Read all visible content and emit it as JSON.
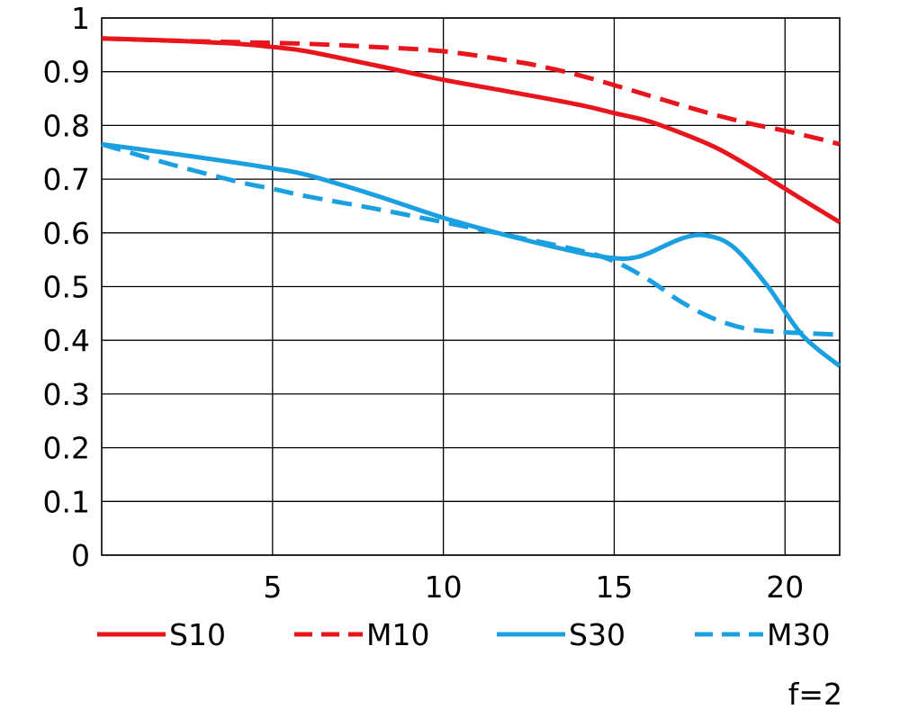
{
  "chart_data": {
    "type": "line",
    "title": "",
    "xlabel": "",
    "ylabel": "",
    "xlim": [
      0,
      21.6
    ],
    "ylim": [
      0,
      1
    ],
    "xticks": [
      5,
      10,
      15,
      20
    ],
    "yticks": [
      0,
      0.1,
      0.2,
      0.3,
      0.4,
      0.5,
      0.6,
      0.7,
      0.8,
      0.9,
      1
    ],
    "xtick_labels": [
      "5",
      "10",
      "15",
      "20"
    ],
    "ytick_labels": [
      "0",
      "0.1",
      "0.2",
      "0.3",
      "0.4",
      "0.5",
      "0.6",
      "0.7",
      "0.8",
      "0.9",
      "1"
    ],
    "grid": true,
    "legend_position": "bottom",
    "series": [
      {
        "name": "S10",
        "color": "#e8151c",
        "dash": false,
        "x": [
          0,
          2,
          4,
          5,
          6,
          8,
          10,
          12,
          14,
          15,
          16,
          17,
          18,
          19,
          20,
          21,
          21.6
        ],
        "y": [
          0.962,
          0.958,
          0.952,
          0.946,
          0.938,
          0.912,
          0.885,
          0.862,
          0.838,
          0.823,
          0.808,
          0.785,
          0.758,
          0.722,
          0.682,
          0.643,
          0.62
        ]
      },
      {
        "name": "M10",
        "color": "#e8151c",
        "dash": true,
        "x": [
          0,
          2,
          4,
          6,
          8,
          10,
          12,
          13,
          14,
          15,
          16,
          17,
          18,
          19,
          20,
          21,
          21.6
        ],
        "y": [
          0.962,
          0.958,
          0.955,
          0.952,
          0.946,
          0.938,
          0.92,
          0.908,
          0.893,
          0.875,
          0.856,
          0.837,
          0.819,
          0.803,
          0.79,
          0.775,
          0.765
        ]
      },
      {
        "name": "S30",
        "color": "#1aa0e0",
        "dash": false,
        "x": [
          0,
          2,
          4,
          5,
          6,
          8,
          10,
          12,
          14,
          15,
          15.5,
          16,
          17,
          17.7,
          18.5,
          19.5,
          20.5,
          21.6
        ],
        "y": [
          0.765,
          0.748,
          0.73,
          0.72,
          0.708,
          0.67,
          0.628,
          0.593,
          0.563,
          0.553,
          0.553,
          0.562,
          0.59,
          0.595,
          0.573,
          0.5,
          0.41,
          0.352
        ]
      },
      {
        "name": "M30",
        "color": "#1aa0e0",
        "dash": true,
        "x": [
          0,
          2,
          4,
          5,
          6,
          8,
          10,
          12,
          14,
          15,
          16,
          17,
          18,
          19,
          20,
          21,
          21.6
        ],
        "y": [
          0.765,
          0.728,
          0.695,
          0.682,
          0.668,
          0.645,
          0.62,
          0.594,
          0.567,
          0.547,
          0.513,
          0.47,
          0.438,
          0.42,
          0.415,
          0.412,
          0.41
        ]
      }
    ],
    "annotations": [
      "f=2"
    ]
  }
}
